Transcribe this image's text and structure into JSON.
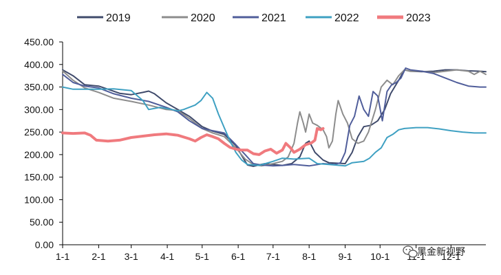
{
  "chart_data": {
    "type": "line",
    "title": "",
    "xlabel": "",
    "ylabel": "",
    "ylim": [
      0,
      450
    ],
    "x_range": [
      1,
      365
    ],
    "y_ticks": [
      "0.00",
      "50.00",
      "100.00",
      "150.00",
      "200.00",
      "250.00",
      "300.00",
      "350.00",
      "400.00",
      "450.00"
    ],
    "x_ticks": [
      {
        "label": "1-1",
        "day": 1
      },
      {
        "label": "2-1",
        "day": 32
      },
      {
        "label": "3-1",
        "day": 60
      },
      {
        "label": "4-1",
        "day": 91
      },
      {
        "label": "5-1",
        "day": 121
      },
      {
        "label": "6-1",
        "day": 152
      },
      {
        "label": "7-1",
        "day": 182
      },
      {
        "label": "8-1",
        "day": 213
      },
      {
        "label": "9-1",
        "day": 244
      },
      {
        "label": "10-1",
        "day": 274
      },
      {
        "label": "11-1",
        "day": 305
      },
      {
        "label": "12-1",
        "day": 335
      }
    ],
    "legend_position": "top",
    "grid": false,
    "series": [
      {
        "name": "2019",
        "color": "#3f4a6b",
        "width": 2,
        "points": [
          [
            1,
            388
          ],
          [
            10,
            375
          ],
          [
            20,
            355
          ],
          [
            32,
            352
          ],
          [
            40,
            345
          ],
          [
            50,
            336
          ],
          [
            60,
            333
          ],
          [
            70,
            338
          ],
          [
            75,
            341
          ],
          [
            80,
            335
          ],
          [
            90,
            315
          ],
          [
            100,
            300
          ],
          [
            110,
            285
          ],
          [
            121,
            262
          ],
          [
            130,
            252
          ],
          [
            140,
            245
          ],
          [
            150,
            220
          ],
          [
            155,
            198
          ],
          [
            160,
            177
          ],
          [
            165,
            174
          ],
          [
            175,
            180
          ],
          [
            182,
            178
          ],
          [
            190,
            176
          ],
          [
            198,
            180
          ],
          [
            205,
            195
          ],
          [
            210,
            225
          ],
          [
            213,
            230
          ],
          [
            218,
            205
          ],
          [
            225,
            188
          ],
          [
            230,
            182
          ],
          [
            244,
            180
          ],
          [
            250,
            205
          ],
          [
            255,
            240
          ],
          [
            260,
            262
          ],
          [
            266,
            265
          ],
          [
            272,
            275
          ],
          [
            278,
            300
          ],
          [
            283,
            335
          ],
          [
            290,
            365
          ],
          [
            295,
            388
          ],
          [
            300,
            385
          ],
          [
            310,
            384
          ],
          [
            320,
            385
          ],
          [
            330,
            388
          ],
          [
            340,
            388
          ],
          [
            350,
            386
          ],
          [
            360,
            385
          ],
          [
            365,
            384
          ]
        ]
      },
      {
        "name": "2020",
        "color": "#8c8c8c",
        "width": 2,
        "points": [
          [
            1,
            386
          ],
          [
            10,
            365
          ],
          [
            20,
            348
          ],
          [
            32,
            338
          ],
          [
            45,
            325
          ],
          [
            60,
            318
          ],
          [
            75,
            310
          ],
          [
            90,
            300
          ],
          [
            100,
            298
          ],
          [
            110,
            280
          ],
          [
            121,
            258
          ],
          [
            130,
            248
          ],
          [
            140,
            240
          ],
          [
            150,
            215
          ],
          [
            158,
            190
          ],
          [
            165,
            178
          ],
          [
            172,
            175
          ],
          [
            182,
            180
          ],
          [
            190,
            185
          ],
          [
            195,
            195
          ],
          [
            200,
            225
          ],
          [
            203,
            270
          ],
          [
            205,
            295
          ],
          [
            208,
            270
          ],
          [
            210,
            250
          ],
          [
            213,
            290
          ],
          [
            216,
            270
          ],
          [
            220,
            265
          ],
          [
            225,
            255
          ],
          [
            228,
            240
          ],
          [
            230,
            215
          ],
          [
            233,
            230
          ],
          [
            236,
            290
          ],
          [
            238,
            320
          ],
          [
            242,
            290
          ],
          [
            246,
            270
          ],
          [
            250,
            235
          ],
          [
            255,
            225
          ],
          [
            260,
            230
          ],
          [
            264,
            250
          ],
          [
            270,
            300
          ],
          [
            275,
            350
          ],
          [
            280,
            365
          ],
          [
            285,
            355
          ],
          [
            290,
            375
          ],
          [
            295,
            388
          ],
          [
            300,
            385
          ],
          [
            310,
            385
          ],
          [
            320,
            382
          ],
          [
            330,
            385
          ],
          [
            340,
            388
          ],
          [
            350,
            385
          ],
          [
            355,
            378
          ],
          [
            360,
            385
          ],
          [
            365,
            378
          ]
        ]
      },
      {
        "name": "2021",
        "color": "#4f5d9a",
        "width": 2,
        "points": [
          [
            1,
            378
          ],
          [
            10,
            360
          ],
          [
            20,
            352
          ],
          [
            32,
            348
          ],
          [
            45,
            335
          ],
          [
            60,
            325
          ],
          [
            75,
            318
          ],
          [
            90,
            305
          ],
          [
            100,
            295
          ],
          [
            110,
            275
          ],
          [
            121,
            258
          ],
          [
            130,
            253
          ],
          [
            140,
            248
          ],
          [
            150,
            222
          ],
          [
            158,
            200
          ],
          [
            165,
            180
          ],
          [
            172,
            177
          ],
          [
            182,
            175
          ],
          [
            190,
            176
          ],
          [
            200,
            178
          ],
          [
            213,
            175
          ],
          [
            225,
            180
          ],
          [
            235,
            178
          ],
          [
            240,
            182
          ],
          [
            244,
            205
          ],
          [
            248,
            265
          ],
          [
            252,
            285
          ],
          [
            256,
            330
          ],
          [
            260,
            300
          ],
          [
            264,
            285
          ],
          [
            268,
            340
          ],
          [
            272,
            330
          ],
          [
            276,
            275
          ],
          [
            280,
            340
          ],
          [
            284,
            355
          ],
          [
            288,
            360
          ],
          [
            292,
            370
          ],
          [
            296,
            392
          ],
          [
            300,
            388
          ],
          [
            310,
            385
          ],
          [
            320,
            380
          ],
          [
            330,
            370
          ],
          [
            340,
            360
          ],
          [
            350,
            352
          ],
          [
            360,
            350
          ],
          [
            365,
            350
          ]
        ]
      },
      {
        "name": "2022",
        "color": "#3ea0c2",
        "width": 2,
        "points": [
          [
            1,
            350
          ],
          [
            10,
            345
          ],
          [
            20,
            345
          ],
          [
            32,
            345
          ],
          [
            45,
            346
          ],
          [
            60,
            342
          ],
          [
            70,
            320
          ],
          [
            75,
            300
          ],
          [
            85,
            305
          ],
          [
            95,
            300
          ],
          [
            100,
            297
          ],
          [
            105,
            300
          ],
          [
            115,
            310
          ],
          [
            120,
            320
          ],
          [
            125,
            338
          ],
          [
            130,
            325
          ],
          [
            135,
            290
          ],
          [
            140,
            260
          ],
          [
            145,
            230
          ],
          [
            150,
            205
          ],
          [
            155,
            188
          ],
          [
            160,
            178
          ],
          [
            170,
            176
          ],
          [
            182,
            185
          ],
          [
            190,
            192
          ],
          [
            200,
            190
          ],
          [
            213,
            192
          ],
          [
            220,
            180
          ],
          [
            230,
            178
          ],
          [
            244,
            175
          ],
          [
            250,
            182
          ],
          [
            260,
            185
          ],
          [
            265,
            192
          ],
          [
            270,
            205
          ],
          [
            275,
            215
          ],
          [
            280,
            238
          ],
          [
            285,
            245
          ],
          [
            290,
            255
          ],
          [
            295,
            258
          ],
          [
            305,
            260
          ],
          [
            315,
            260
          ],
          [
            325,
            257
          ],
          [
            335,
            253
          ],
          [
            345,
            250
          ],
          [
            355,
            248
          ],
          [
            365,
            248
          ]
        ]
      },
      {
        "name": "2023",
        "color": "#f07a7e",
        "width": 4,
        "points": [
          [
            1,
            248
          ],
          [
            10,
            247
          ],
          [
            20,
            248
          ],
          [
            25,
            243
          ],
          [
            30,
            232
          ],
          [
            40,
            230
          ],
          [
            50,
            232
          ],
          [
            60,
            238
          ],
          [
            70,
            241
          ],
          [
            80,
            244
          ],
          [
            90,
            246
          ],
          [
            100,
            243
          ],
          [
            110,
            235
          ],
          [
            115,
            230
          ],
          [
            120,
            238
          ],
          [
            125,
            244
          ],
          [
            130,
            240
          ],
          [
            135,
            235
          ],
          [
            140,
            225
          ],
          [
            145,
            216
          ],
          [
            150,
            212
          ],
          [
            155,
            210
          ],
          [
            160,
            210
          ],
          [
            165,
            202
          ],
          [
            170,
            200
          ],
          [
            175,
            208
          ],
          [
            180,
            212
          ],
          [
            185,
            203
          ],
          [
            190,
            210
          ],
          [
            193,
            225
          ],
          [
            197,
            215
          ],
          [
            200,
            205
          ],
          [
            205,
            212
          ],
          [
            210,
            222
          ],
          [
            215,
            226
          ],
          [
            218,
            232
          ],
          [
            220,
            258
          ],
          [
            223,
            255
          ],
          [
            225,
            258
          ]
        ]
      }
    ]
  },
  "watermark": {
    "text": "黑金新视野",
    "icon": "wechat-icon"
  }
}
